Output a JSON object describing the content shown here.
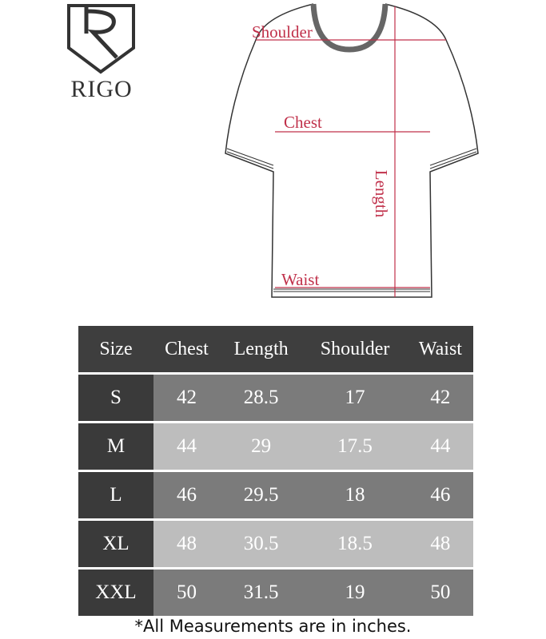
{
  "brand": {
    "name": "RIGO",
    "logo_icon": "shield-r-logo"
  },
  "diagram": {
    "labels": {
      "shoulder": "Shoulder",
      "chest": "Chest",
      "length": "Length",
      "waist": "Waist"
    },
    "accent_color": "#c0304a"
  },
  "table": {
    "headers": [
      "Size",
      "Chest",
      "Length",
      "Shoulder",
      "Waist"
    ],
    "rows": [
      {
        "size": "S",
        "chest": "42",
        "length": "28.5",
        "shoulder": "17",
        "waist": "42"
      },
      {
        "size": "M",
        "chest": "44",
        "length": "29",
        "shoulder": "17.5",
        "waist": "44"
      },
      {
        "size": "L",
        "chest": "46",
        "length": "29.5",
        "shoulder": "18",
        "waist": "46"
      },
      {
        "size": "XL",
        "chest": "48",
        "length": "30.5",
        "shoulder": "18.5",
        "waist": "48"
      },
      {
        "size": "XXL",
        "chest": "50",
        "length": "31.5",
        "shoulder": "19",
        "waist": "50"
      }
    ]
  },
  "note": "*All Measurements are in inches."
}
